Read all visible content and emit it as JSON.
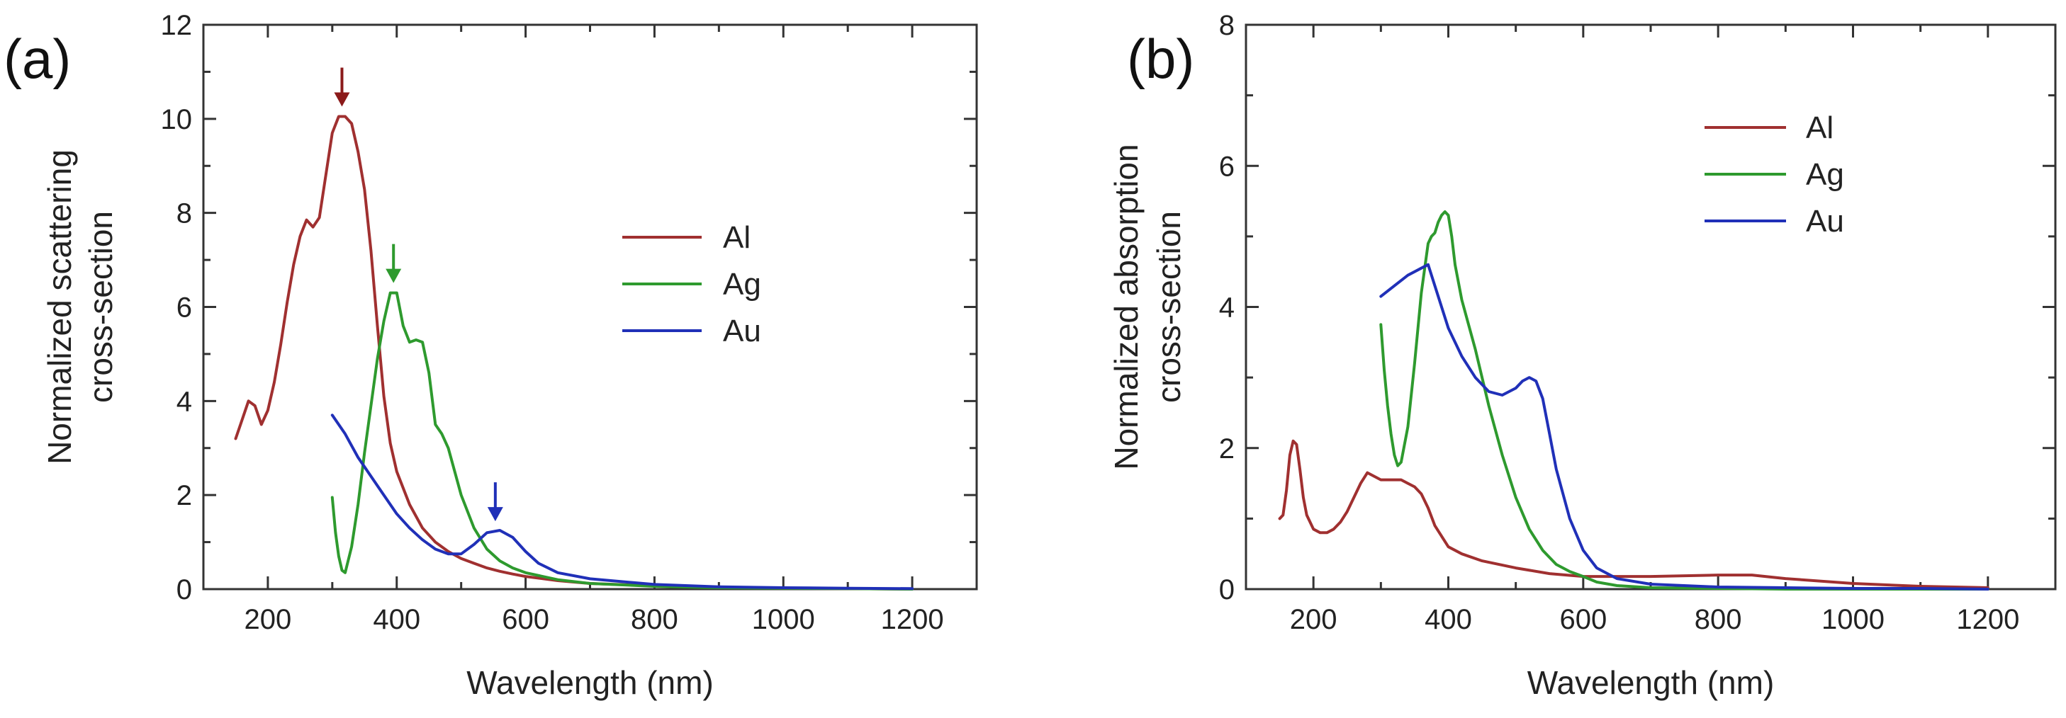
{
  "figure": {
    "panels": [
      "(a)",
      "(b)"
    ]
  },
  "chart_data": [
    {
      "type": "line",
      "panel_label": "(a)",
      "title": "",
      "xlabel": "Wavelength (nm)",
      "ylabel_lines": [
        "Normalized scattering",
        "cross-section"
      ],
      "xlim": [
        100,
        1300
      ],
      "ylim": [
        0,
        12
      ],
      "xticks": [
        200,
        400,
        600,
        800,
        1000,
        1200
      ],
      "yticks": [
        0,
        2,
        4,
        6,
        8,
        10,
        12
      ],
      "legend": "center-right",
      "series": [
        {
          "name": "Al",
          "color": "#a03030",
          "x": [
            150,
            160,
            170,
            180,
            190,
            200,
            210,
            220,
            230,
            240,
            250,
            260,
            270,
            280,
            290,
            300,
            310,
            320,
            330,
            340,
            350,
            360,
            370,
            380,
            390,
            400,
            420,
            440,
            460,
            480,
            500,
            520,
            540,
            560,
            580,
            600,
            650,
            700,
            800,
            900,
            1000,
            1100,
            1200
          ],
          "y": [
            3.2,
            3.6,
            4.0,
            3.9,
            3.5,
            3.8,
            4.4,
            5.2,
            6.1,
            6.9,
            7.5,
            7.85,
            7.7,
            7.9,
            8.8,
            9.7,
            10.05,
            10.05,
            9.9,
            9.3,
            8.5,
            7.2,
            5.6,
            4.1,
            3.1,
            2.5,
            1.8,
            1.3,
            1.0,
            0.8,
            0.65,
            0.55,
            0.45,
            0.38,
            0.32,
            0.27,
            0.18,
            0.12,
            0.07,
            0.04,
            0.02,
            0.01,
            0.0
          ]
        },
        {
          "name": "Ag",
          "color": "#2e9a2e",
          "x": [
            300,
            305,
            310,
            315,
            320,
            330,
            340,
            350,
            360,
            370,
            380,
            390,
            400,
            410,
            420,
            430,
            440,
            450,
            460,
            470,
            480,
            490,
            500,
            520,
            540,
            560,
            580,
            600,
            650,
            700,
            800,
            900,
            1000,
            1100,
            1200
          ],
          "y": [
            1.95,
            1.2,
            0.7,
            0.4,
            0.35,
            0.9,
            1.8,
            2.9,
            3.9,
            4.9,
            5.7,
            6.3,
            6.3,
            5.6,
            5.25,
            5.3,
            5.25,
            4.6,
            3.5,
            3.3,
            3.0,
            2.5,
            2.0,
            1.3,
            0.85,
            0.6,
            0.45,
            0.35,
            0.2,
            0.12,
            0.06,
            0.03,
            0.02,
            0.01,
            0.0
          ]
        },
        {
          "name": "Au",
          "color": "#2030b8",
          "x": [
            300,
            320,
            340,
            360,
            380,
            400,
            420,
            440,
            460,
            480,
            500,
            520,
            540,
            560,
            580,
            600,
            620,
            650,
            700,
            800,
            900,
            1000,
            1100,
            1200
          ],
          "y": [
            3.7,
            3.3,
            2.8,
            2.4,
            2.0,
            1.6,
            1.3,
            1.05,
            0.85,
            0.75,
            0.75,
            0.95,
            1.2,
            1.25,
            1.1,
            0.8,
            0.55,
            0.35,
            0.22,
            0.1,
            0.05,
            0.03,
            0.02,
            0.01
          ]
        }
      ],
      "annotations": [
        {
          "label": "Al peak",
          "x": 315,
          "color": "#8b1a1a"
        },
        {
          "label": "Ag peak",
          "x": 395,
          "color": "#2e9a2e"
        },
        {
          "label": "Au peak",
          "x": 553,
          "color": "#2030b8"
        }
      ]
    },
    {
      "type": "line",
      "panel_label": "(b)",
      "title": "",
      "xlabel": "Wavelength (nm)",
      "ylabel_lines": [
        "Normalized absorption",
        "cross-section"
      ],
      "xlim": [
        100,
        1300
      ],
      "ylim": [
        0,
        8
      ],
      "xticks": [
        200,
        400,
        600,
        800,
        1000,
        1200
      ],
      "yticks": [
        0,
        2,
        4,
        6,
        8
      ],
      "legend": "top-right",
      "series": [
        {
          "name": "Al",
          "color": "#a03030",
          "x": [
            150,
            155,
            160,
            165,
            170,
            175,
            180,
            185,
            190,
            200,
            210,
            220,
            230,
            240,
            250,
            260,
            270,
            280,
            290,
            300,
            310,
            320,
            330,
            340,
            350,
            360,
            370,
            380,
            400,
            420,
            450,
            500,
            550,
            600,
            700,
            800,
            850,
            900,
            1000,
            1100,
            1200
          ],
          "y": [
            1.0,
            1.05,
            1.4,
            1.9,
            2.1,
            2.05,
            1.7,
            1.3,
            1.05,
            0.85,
            0.8,
            0.8,
            0.85,
            0.95,
            1.1,
            1.3,
            1.5,
            1.65,
            1.6,
            1.55,
            1.55,
            1.55,
            1.55,
            1.5,
            1.45,
            1.35,
            1.15,
            0.9,
            0.6,
            0.5,
            0.4,
            0.3,
            0.22,
            0.18,
            0.18,
            0.2,
            0.2,
            0.15,
            0.08,
            0.04,
            0.02
          ]
        },
        {
          "name": "Ag",
          "color": "#2e9a2e",
          "x": [
            300,
            305,
            310,
            315,
            320,
            325,
            330,
            340,
            350,
            360,
            370,
            375,
            380,
            385,
            390,
            395,
            400,
            405,
            410,
            420,
            440,
            460,
            480,
            500,
            520,
            540,
            560,
            580,
            600,
            620,
            650,
            700,
            800,
            900,
            1000,
            1100,
            1200
          ],
          "y": [
            3.75,
            3.1,
            2.6,
            2.2,
            1.9,
            1.75,
            1.8,
            2.3,
            3.2,
            4.2,
            4.9,
            5.0,
            5.05,
            5.2,
            5.3,
            5.35,
            5.3,
            5.0,
            4.6,
            4.1,
            3.4,
            2.6,
            1.9,
            1.3,
            0.85,
            0.55,
            0.35,
            0.25,
            0.18,
            0.1,
            0.05,
            0.02,
            0.01,
            0.0,
            0.0,
            0.0,
            0.0
          ]
        },
        {
          "name": "Au",
          "color": "#2030b8",
          "x": [
            300,
            320,
            340,
            360,
            370,
            380,
            390,
            400,
            420,
            440,
            460,
            480,
            500,
            510,
            520,
            530,
            540,
            550,
            560,
            580,
            600,
            620,
            650,
            700,
            800,
            900,
            1000,
            1100,
            1200
          ],
          "y": [
            4.15,
            4.3,
            4.45,
            4.55,
            4.6,
            4.3,
            4.0,
            3.7,
            3.3,
            3.0,
            2.8,
            2.75,
            2.85,
            2.95,
            3.0,
            2.95,
            2.7,
            2.2,
            1.7,
            1.0,
            0.55,
            0.3,
            0.15,
            0.07,
            0.03,
            0.02,
            0.01,
            0.01,
            0.0
          ]
        }
      ],
      "annotations": []
    }
  ]
}
